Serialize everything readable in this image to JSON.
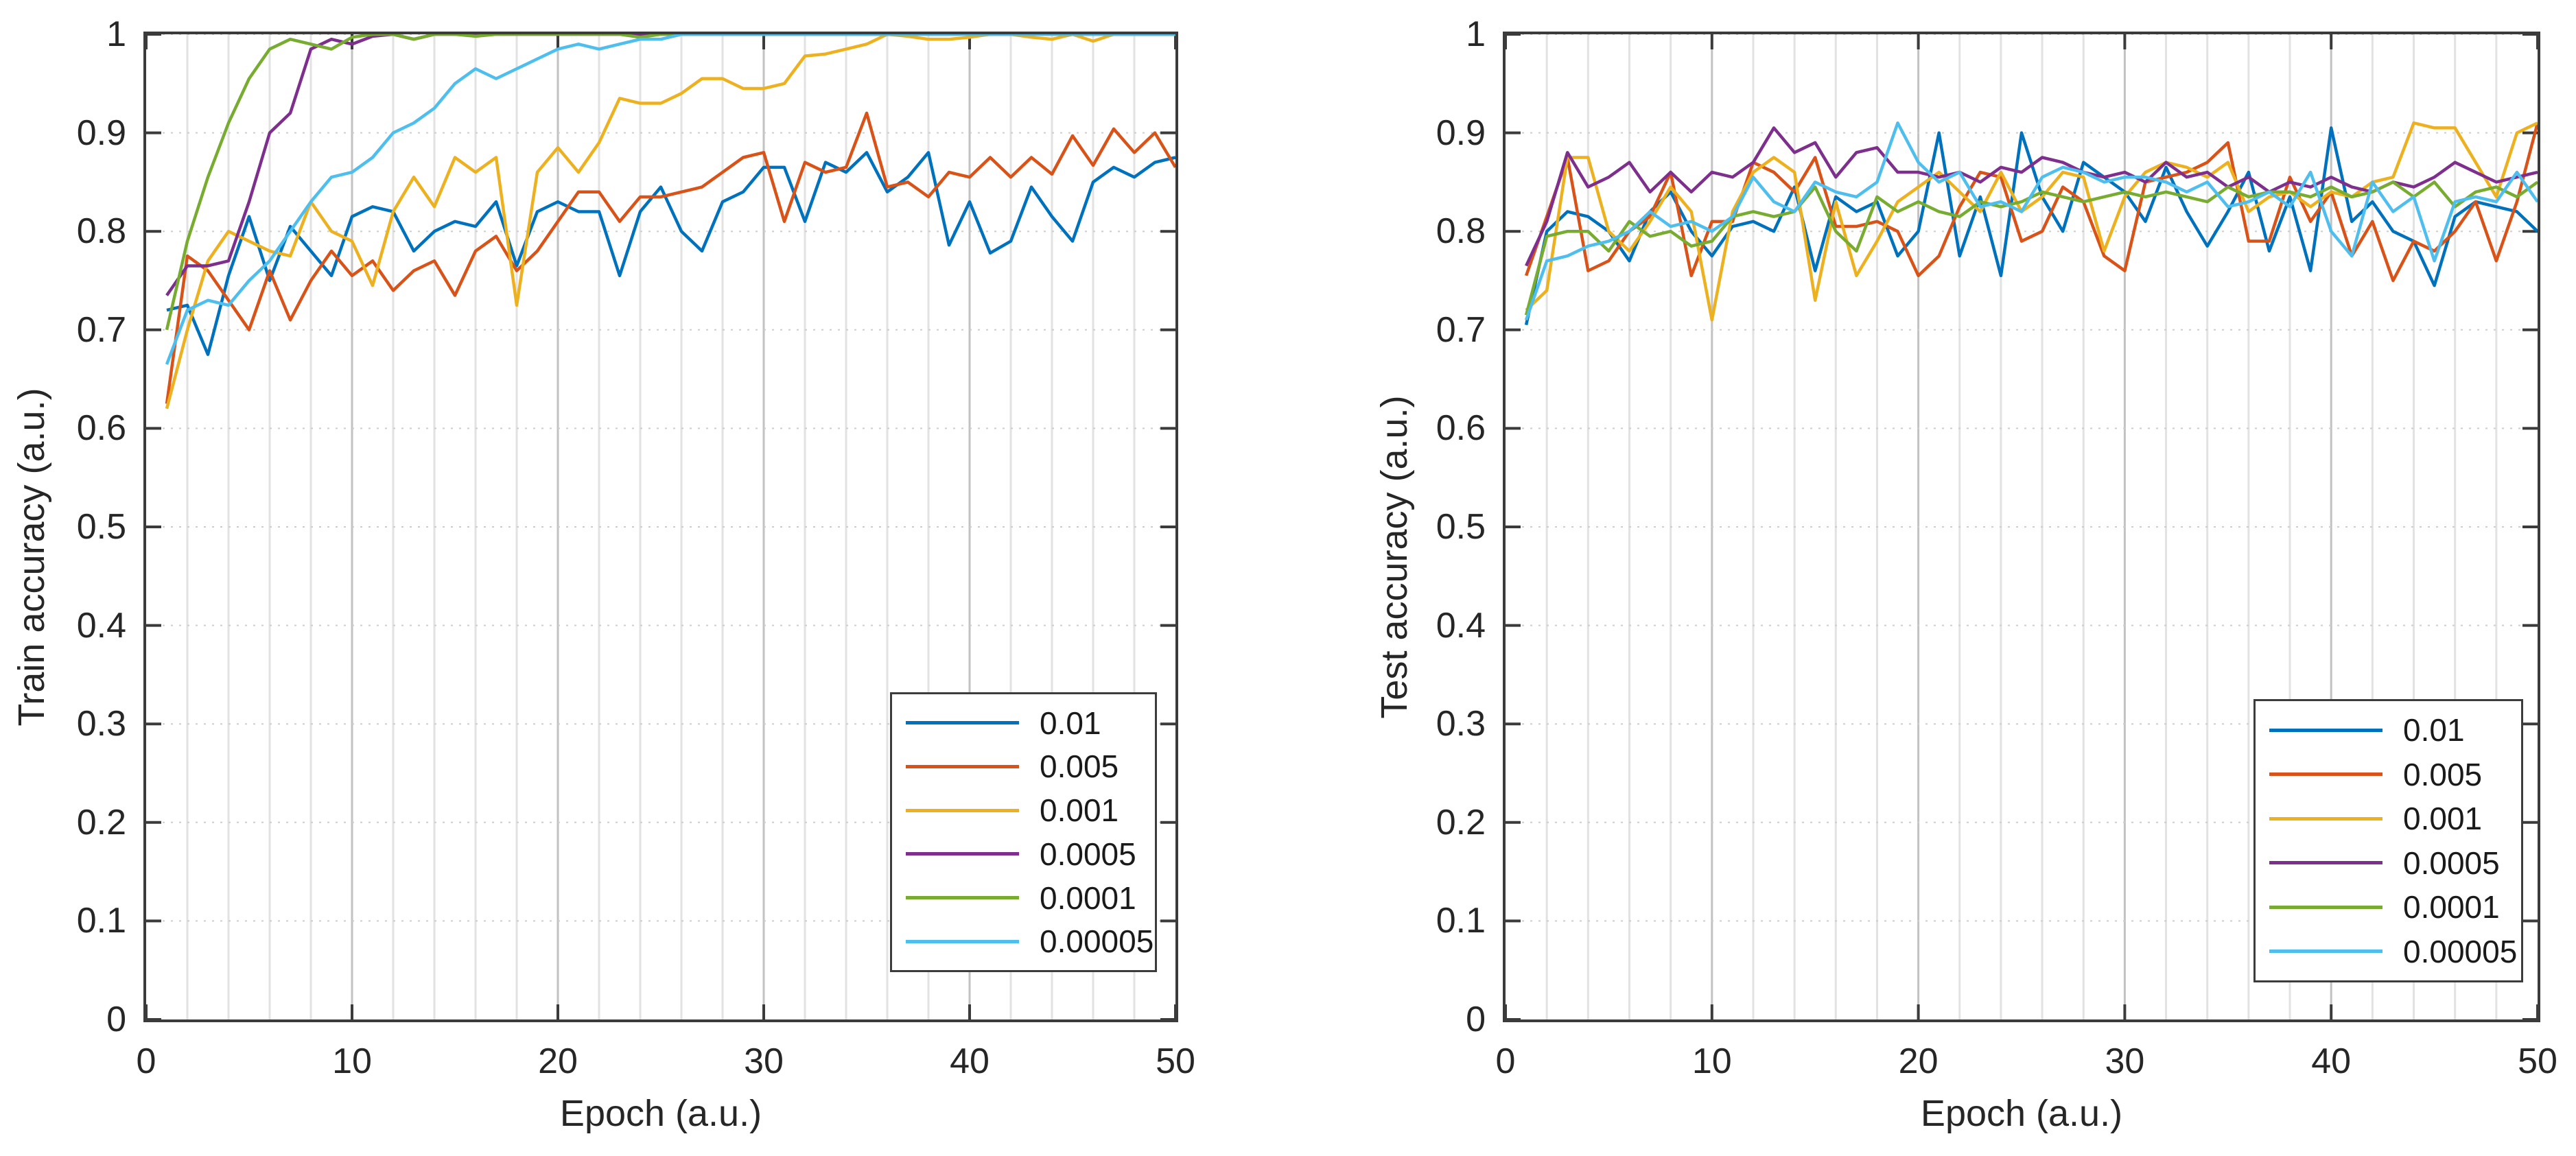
{
  "figure": {
    "background": "#ffffff",
    "axis_box_color": "#3b3b3b",
    "text_color": "#262626",
    "grid_minor_color": "#e2e2e2",
    "grid_major_color": "#c2c2c2",
    "grid_dotted_color": "#cdcdcd"
  },
  "chart_data": [
    {
      "type": "line",
      "title": "",
      "xlabel": "Epoch (a.u.)",
      "ylabel": "Train accuracy (a.u.)",
      "xlim": [
        0,
        50
      ],
      "ylim": [
        0,
        1
      ],
      "x_ticks": [
        0,
        10,
        20,
        30,
        40,
        50
      ],
      "x_tick_labels": [
        "0",
        "10",
        "20",
        "30",
        "40",
        "50"
      ],
      "y_ticks": [
        0,
        0.1,
        0.2,
        0.3,
        0.4,
        0.5,
        0.6,
        0.7,
        0.8,
        0.9,
        1
      ],
      "y_tick_labels": [
        "0",
        "0.1",
        "0.2",
        "0.3",
        "0.4",
        "0.5",
        "0.6",
        "0.7",
        "0.8",
        "0.9",
        "1"
      ],
      "grid": "on",
      "minor_x_grid_step": 2,
      "legend_position": "southeast",
      "x": [
        1,
        2,
        3,
        4,
        5,
        6,
        7,
        8,
        9,
        10,
        11,
        12,
        13,
        14,
        15,
        16,
        17,
        18,
        19,
        20,
        21,
        22,
        23,
        24,
        25,
        26,
        27,
        28,
        29,
        30,
        31,
        32,
        33,
        34,
        35,
        36,
        37,
        38,
        39,
        40,
        41,
        42,
        43,
        44,
        45,
        46,
        47,
        48,
        49,
        50
      ],
      "series": [
        {
          "name": "0.01",
          "color": "#0072BD",
          "values": [
            0.72,
            0.725,
            0.675,
            0.755,
            0.815,
            0.75,
            0.805,
            0.78,
            0.755,
            0.815,
            0.825,
            0.82,
            0.78,
            0.8,
            0.81,
            0.805,
            0.83,
            0.765,
            0.82,
            0.83,
            0.82,
            0.82,
            0.755,
            0.82,
            0.845,
            0.8,
            0.78,
            0.83,
            0.84,
            0.865,
            0.865,
            0.81,
            0.87,
            0.86,
            0.88,
            0.84,
            0.855,
            0.88,
            0.786,
            0.83,
            0.778,
            0.79,
            0.845,
            0.815,
            0.79,
            0.85,
            0.865,
            0.855,
            0.87,
            0.875
          ]
        },
        {
          "name": "0.005",
          "color": "#D95319",
          "values": [
            0.625,
            0.775,
            0.76,
            0.73,
            0.7,
            0.76,
            0.71,
            0.75,
            0.78,
            0.755,
            0.77,
            0.74,
            0.76,
            0.77,
            0.735,
            0.78,
            0.795,
            0.76,
            0.78,
            0.81,
            0.84,
            0.84,
            0.81,
            0.835,
            0.835,
            0.84,
            0.845,
            0.86,
            0.875,
            0.88,
            0.81,
            0.87,
            0.86,
            0.865,
            0.92,
            0.845,
            0.85,
            0.835,
            0.86,
            0.855,
            0.875,
            0.855,
            0.875,
            0.858,
            0.897,
            0.867,
            0.904,
            0.88,
            0.9,
            0.865
          ]
        },
        {
          "name": "0.001",
          "color": "#EDB120",
          "values": [
            0.62,
            0.7,
            0.77,
            0.8,
            0.79,
            0.78,
            0.775,
            0.83,
            0.8,
            0.79,
            0.745,
            0.82,
            0.855,
            0.825,
            0.875,
            0.86,
            0.875,
            0.725,
            0.86,
            0.885,
            0.86,
            0.89,
            0.935,
            0.93,
            0.93,
            0.94,
            0.955,
            0.955,
            0.945,
            0.945,
            0.95,
            0.978,
            0.98,
            0.985,
            0.99,
            1.0,
            0.998,
            0.995,
            0.995,
            0.997,
            1.0,
            1.0,
            0.997,
            0.995,
            1.0,
            0.993,
            1.0,
            1.0,
            1.0,
            1.0
          ]
        },
        {
          "name": "0.0005",
          "color": "#7E2F8E",
          "values": [
            0.735,
            0.765,
            0.765,
            0.77,
            0.83,
            0.9,
            0.92,
            0.985,
            0.995,
            0.99,
            0.998,
            1.0,
            0.995,
            1.0,
            1.0,
            1.0,
            1.0,
            1.0,
            1.0,
            1.0,
            1.0,
            1.0,
            1.0,
            1.0,
            1.0,
            1.0,
            1.0,
            1.0,
            1.0,
            1.0,
            1.0,
            1.0,
            1.0,
            1.0,
            1.0,
            1.0,
            1.0,
            1.0,
            1.0,
            1.0,
            1.0,
            1.0,
            1.0,
            1.0,
            1.0,
            1.0,
            1.0,
            1.0,
            1.0,
            1.0
          ]
        },
        {
          "name": "0.0001",
          "color": "#77AC30",
          "values": [
            0.7,
            0.79,
            0.855,
            0.91,
            0.955,
            0.985,
            0.995,
            0.99,
            0.985,
            0.997,
            1.0,
            1.0,
            0.995,
            1.0,
            1.0,
            0.998,
            1.0,
            1.0,
            1.0,
            1.0,
            1.0,
            1.0,
            1.0,
            0.997,
            1.0,
            1.0,
            1.0,
            1.0,
            1.0,
            1.0,
            1.0,
            1.0,
            1.0,
            1.0,
            1.0,
            1.0,
            1.0,
            1.0,
            1.0,
            1.0,
            1.0,
            1.0,
            1.0,
            1.0,
            1.0,
            1.0,
            1.0,
            1.0,
            1.0,
            1.0
          ]
        },
        {
          "name": "0.00005",
          "color": "#4DBEEE",
          "values": [
            0.665,
            0.72,
            0.73,
            0.725,
            0.75,
            0.77,
            0.8,
            0.83,
            0.855,
            0.86,
            0.875,
            0.9,
            0.91,
            0.925,
            0.95,
            0.965,
            0.955,
            0.965,
            0.975,
            0.985,
            0.99,
            0.985,
            0.99,
            0.995,
            0.995,
            1.0,
            1.0,
            1.0,
            1.0,
            1.0,
            1.0,
            1.0,
            1.0,
            1.0,
            1.0,
            1.0,
            1.0,
            1.0,
            1.0,
            1.0,
            1.0,
            1.0,
            1.0,
            1.0,
            1.0,
            1.0,
            1.0,
            1.0,
            1.0,
            1.0
          ]
        }
      ]
    },
    {
      "type": "line",
      "title": "",
      "xlabel": "Epoch (a.u.)",
      "ylabel": "Test accuracy (a.u.)",
      "xlim": [
        0,
        50
      ],
      "ylim": [
        0,
        1
      ],
      "x_ticks": [
        0,
        10,
        20,
        30,
        40,
        50
      ],
      "x_tick_labels": [
        "0",
        "10",
        "20",
        "30",
        "40",
        "50"
      ],
      "y_ticks": [
        0,
        0.1,
        0.2,
        0.3,
        0.4,
        0.5,
        0.6,
        0.7,
        0.8,
        0.9,
        1
      ],
      "y_tick_labels": [
        "0",
        "0.1",
        "0.2",
        "0.3",
        "0.4",
        "0.5",
        "0.6",
        "0.7",
        "0.8",
        "0.9",
        "1"
      ],
      "grid": "on",
      "minor_x_grid_step": 2,
      "legend_position": "southeast",
      "x": [
        1,
        2,
        3,
        4,
        5,
        6,
        7,
        8,
        9,
        10,
        11,
        12,
        13,
        14,
        15,
        16,
        17,
        18,
        19,
        20,
        21,
        22,
        23,
        24,
        25,
        26,
        27,
        28,
        29,
        30,
        31,
        32,
        33,
        34,
        35,
        36,
        37,
        38,
        39,
        40,
        41,
        42,
        43,
        44,
        45,
        46,
        47,
        48,
        49,
        50
      ],
      "series": [
        {
          "name": "0.01",
          "color": "#0072BD",
          "values": [
            0.705,
            0.8,
            0.82,
            0.815,
            0.8,
            0.77,
            0.82,
            0.84,
            0.8,
            0.775,
            0.805,
            0.81,
            0.8,
            0.845,
            0.76,
            0.835,
            0.82,
            0.83,
            0.775,
            0.8,
            0.9,
            0.775,
            0.835,
            0.755,
            0.9,
            0.835,
            0.8,
            0.87,
            0.855,
            0.84,
            0.81,
            0.865,
            0.82,
            0.785,
            0.82,
            0.86,
            0.78,
            0.835,
            0.76,
            0.905,
            0.81,
            0.83,
            0.8,
            0.79,
            0.745,
            0.815,
            0.83,
            0.825,
            0.82,
            0.8
          ]
        },
        {
          "name": "0.005",
          "color": "#D95319",
          "values": [
            0.755,
            0.815,
            0.875,
            0.76,
            0.77,
            0.8,
            0.815,
            0.86,
            0.755,
            0.81,
            0.81,
            0.87,
            0.86,
            0.84,
            0.875,
            0.805,
            0.805,
            0.81,
            0.8,
            0.755,
            0.775,
            0.825,
            0.86,
            0.855,
            0.79,
            0.8,
            0.845,
            0.83,
            0.775,
            0.76,
            0.85,
            0.855,
            0.86,
            0.87,
            0.89,
            0.79,
            0.79,
            0.855,
            0.81,
            0.84,
            0.775,
            0.81,
            0.75,
            0.79,
            0.78,
            0.8,
            0.83,
            0.77,
            0.83,
            0.91
          ]
        },
        {
          "name": "0.001",
          "color": "#EDB120",
          "values": [
            0.72,
            0.74,
            0.875,
            0.875,
            0.8,
            0.78,
            0.81,
            0.845,
            0.82,
            0.71,
            0.82,
            0.86,
            0.875,
            0.86,
            0.73,
            0.83,
            0.755,
            0.79,
            0.83,
            0.845,
            0.86,
            0.84,
            0.82,
            0.86,
            0.82,
            0.835,
            0.86,
            0.855,
            0.78,
            0.835,
            0.86,
            0.87,
            0.865,
            0.855,
            0.87,
            0.82,
            0.835,
            0.84,
            0.825,
            0.84,
            0.835,
            0.85,
            0.855,
            0.91,
            0.905,
            0.905,
            0.87,
            0.835,
            0.9,
            0.91
          ]
        },
        {
          "name": "0.0005",
          "color": "#7E2F8E",
          "values": [
            0.765,
            0.81,
            0.88,
            0.845,
            0.855,
            0.87,
            0.84,
            0.86,
            0.84,
            0.86,
            0.855,
            0.87,
            0.905,
            0.88,
            0.89,
            0.855,
            0.88,
            0.885,
            0.86,
            0.86,
            0.855,
            0.86,
            0.85,
            0.865,
            0.86,
            0.875,
            0.87,
            0.86,
            0.855,
            0.86,
            0.85,
            0.87,
            0.855,
            0.86,
            0.845,
            0.855,
            0.84,
            0.85,
            0.845,
            0.855,
            0.845,
            0.84,
            0.85,
            0.845,
            0.855,
            0.87,
            0.86,
            0.85,
            0.855,
            0.86
          ]
        },
        {
          "name": "0.0001",
          "color": "#77AC30",
          "values": [
            0.715,
            0.795,
            0.8,
            0.8,
            0.78,
            0.81,
            0.795,
            0.8,
            0.785,
            0.79,
            0.815,
            0.82,
            0.815,
            0.82,
            0.845,
            0.8,
            0.78,
            0.835,
            0.82,
            0.83,
            0.82,
            0.815,
            0.83,
            0.825,
            0.83,
            0.84,
            0.835,
            0.83,
            0.835,
            0.84,
            0.835,
            0.84,
            0.835,
            0.83,
            0.845,
            0.835,
            0.84,
            0.84,
            0.835,
            0.845,
            0.835,
            0.84,
            0.85,
            0.835,
            0.85,
            0.825,
            0.84,
            0.845,
            0.835,
            0.85
          ]
        },
        {
          "name": "0.00005",
          "color": "#4DBEEE",
          "values": [
            0.71,
            0.77,
            0.775,
            0.785,
            0.79,
            0.8,
            0.82,
            0.805,
            0.81,
            0.8,
            0.815,
            0.855,
            0.83,
            0.82,
            0.85,
            0.84,
            0.835,
            0.85,
            0.91,
            0.87,
            0.85,
            0.86,
            0.825,
            0.83,
            0.82,
            0.855,
            0.865,
            0.86,
            0.85,
            0.855,
            0.855,
            0.85,
            0.84,
            0.85,
            0.825,
            0.83,
            0.84,
            0.825,
            0.86,
            0.8,
            0.775,
            0.85,
            0.82,
            0.835,
            0.77,
            0.83,
            0.835,
            0.83,
            0.86,
            0.83
          ]
        }
      ]
    }
  ]
}
